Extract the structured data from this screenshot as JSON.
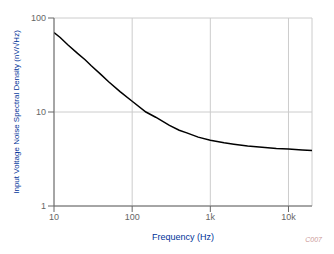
{
  "chart_data": {
    "type": "line",
    "x_label": "Frequency (Hz)",
    "y_label": "Input Voltage Noise Spectral Density (nV/√Hz)",
    "x": [
      10,
      12,
      15,
      20,
      25,
      30,
      40,
      50,
      70,
      100,
      150,
      200,
      300,
      400,
      500,
      700,
      1000,
      1500,
      2000,
      3000,
      5000,
      7000,
      10000,
      15000,
      20000
    ],
    "values": [
      70,
      62,
      52,
      42,
      36,
      31,
      25,
      21,
      16.5,
      13,
      10,
      8.8,
      7.2,
      6.4,
      6.0,
      5.4,
      5.0,
      4.7,
      4.55,
      4.35,
      4.2,
      4.1,
      4.05,
      3.95,
      3.9
    ],
    "xlim": [
      10,
      20000
    ],
    "ylim": [
      1,
      100
    ],
    "xticks": [
      10,
      100,
      {
        "value": 1000,
        "label": "1k"
      },
      {
        "value": 10000,
        "label": "10k"
      }
    ],
    "yticks": [
      1,
      10,
      100
    ],
    "log": true,
    "grid": true,
    "color": "#000000",
    "annotations": [
      "C007"
    ]
  }
}
